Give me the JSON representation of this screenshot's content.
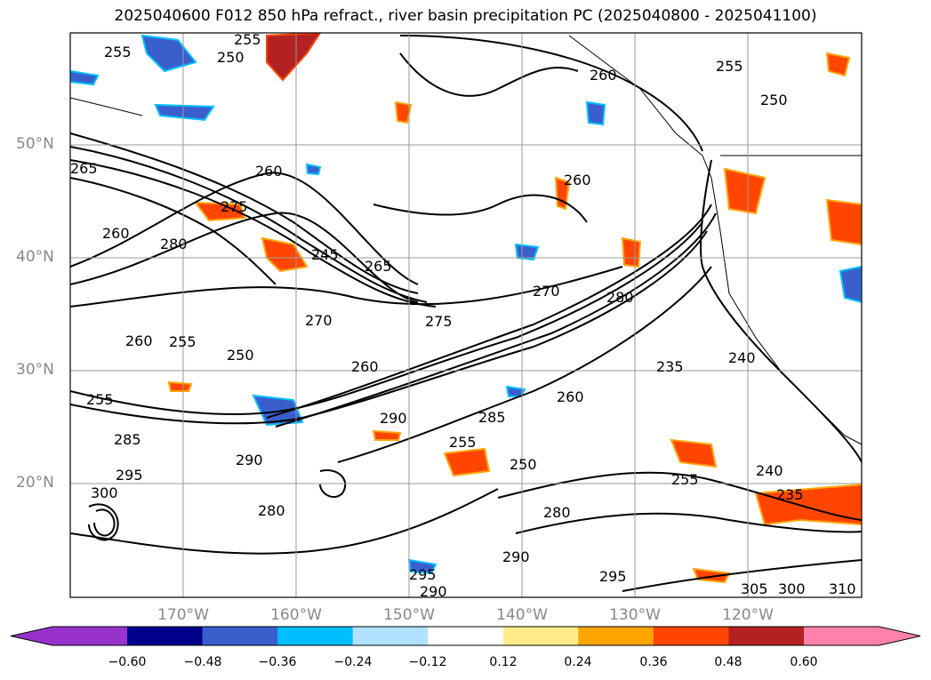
{
  "title": "2025040600 F012 850 hPa refract., river basin precipitation PC (2025040800 - 2025041100)",
  "lat_labels": [
    "50°N",
    "40°N",
    "30°N",
    "20°N"
  ],
  "lon_labels": [
    "170°W",
    "160°W",
    "150°W",
    "140°W",
    "130°W",
    "120°W"
  ],
  "contour_labels": [
    "255",
    "250",
    "255",
    "260",
    "250",
    "265",
    "255",
    "260",
    "275",
    "280",
    "245",
    "265",
    "260",
    "270",
    "280",
    "275",
    "270",
    "260",
    "255",
    "250",
    "260",
    "255",
    "285",
    "290",
    "255",
    "295",
    "300",
    "290",
    "260",
    "280",
    "235",
    "240",
    "240",
    "235",
    "285",
    "280",
    "290",
    "295",
    "255",
    "250",
    "290",
    "295",
    "300",
    "305",
    "310",
    "260"
  ],
  "colorbar": {
    "colors": [
      "#9932cc",
      "#00008b",
      "#3a5fcd",
      "#00bfff",
      "#b0e2ff",
      "#ffffff",
      "#ffec8b",
      "#ffa500",
      "#ff4500",
      "#b22222",
      "#ff82ab"
    ],
    "ticks": [
      "−0.60",
      "−0.48",
      "−0.36",
      "−0.24",
      "−0.12",
      "0.12",
      "0.24",
      "0.36",
      "0.48",
      "0.60"
    ]
  }
}
